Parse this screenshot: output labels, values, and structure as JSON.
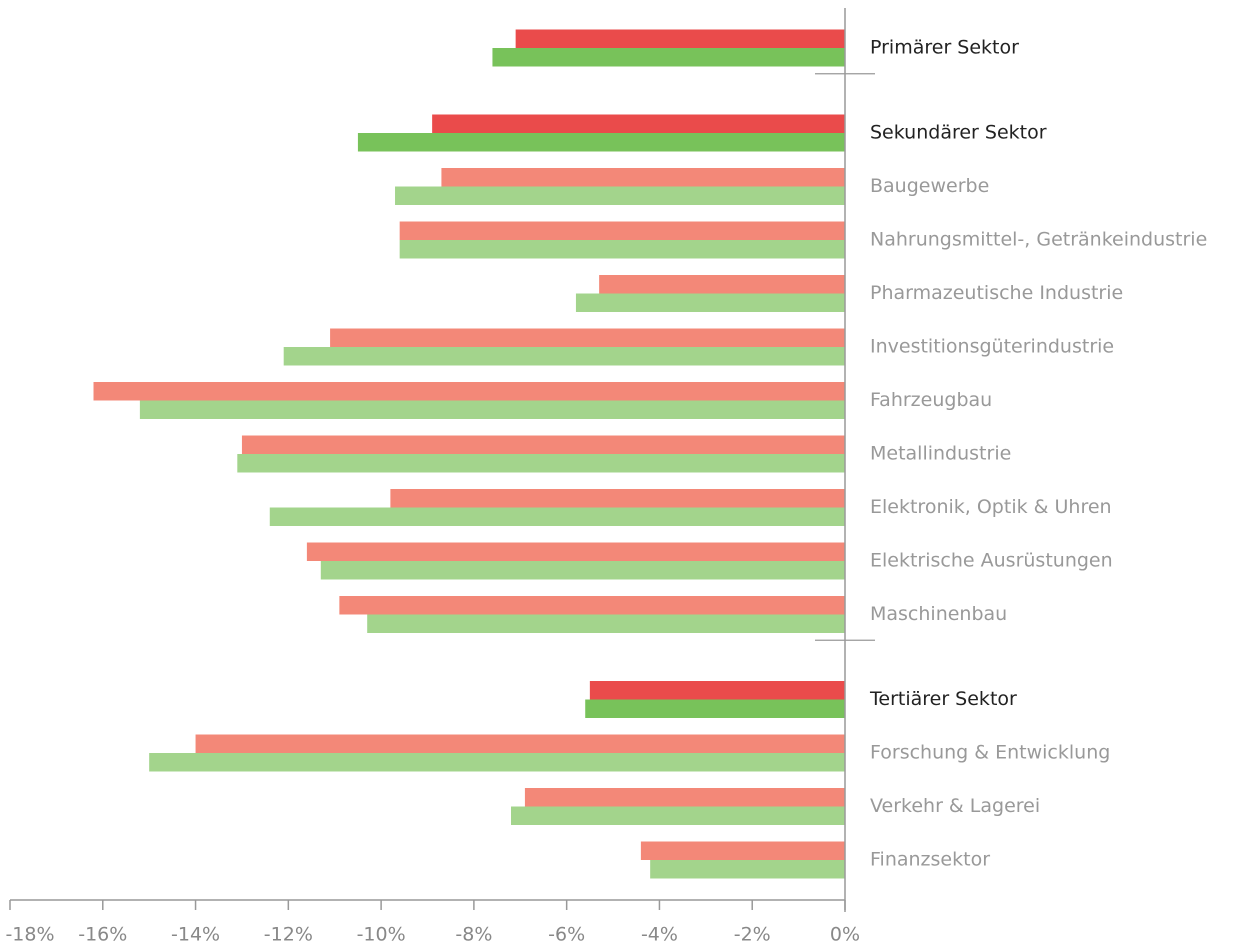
{
  "chart_data": {
    "type": "bar",
    "orientation": "horizontal",
    "categories": [
      "Primärer Sektor",
      "Sekundärer Sektor",
      "Baugewerbe",
      "Nahrungsmittel-, Getränkeindustrie",
      "Pharmazeutische Industrie",
      "Investitionsgüterindustrie",
      "Fahrzeugbau",
      "Metallindustrie",
      "Elektronik, Optik & Uhren",
      "Elektrische Ausrüstungen",
      "Maschinenbau",
      "Tertiärer Sektor",
      "Forschung & Entwicklung",
      "Verkehr & Lagerei",
      "Finanzsektor"
    ],
    "label_colors": [
      "#222222",
      "#222222",
      "#999999",
      "#999999",
      "#999999",
      "#999999",
      "#999999",
      "#999999",
      "#999999",
      "#999999",
      "#999999",
      "#222222",
      "#999999",
      "#999999",
      "#999999"
    ],
    "series": [
      {
        "colors": [
          "#ea4b4b",
          "#ea4b4b",
          "#f38878",
          "#f38878",
          "#f38878",
          "#f38878",
          "#f38878",
          "#f38878",
          "#f38878",
          "#f38878",
          "#f38878",
          "#ea4b4b",
          "#f38878",
          "#f38878",
          "#f38878"
        ],
        "values": [
          -7.1,
          -8.9,
          -8.7,
          -9.6,
          -5.3,
          -11.1,
          -16.2,
          -13.0,
          -9.8,
          -11.6,
          -10.9,
          -5.5,
          -14.0,
          -6.9,
          -4.4
        ]
      },
      {
        "colors": [
          "#78c25a",
          "#78c25a",
          "#a3d48c",
          "#a3d48c",
          "#a3d48c",
          "#a3d48c",
          "#a3d48c",
          "#a3d48c",
          "#a3d48c",
          "#a3d48c",
          "#a3d48c",
          "#78c25a",
          "#a3d48c",
          "#a3d48c",
          "#a3d48c"
        ],
        "values": [
          -7.6,
          -10.5,
          -9.7,
          -9.6,
          -5.8,
          -12.1,
          -15.2,
          -13.1,
          -12.4,
          -11.3,
          -10.3,
          -5.6,
          -15.0,
          -7.2,
          -4.2
        ]
      }
    ],
    "xlim": [
      -18,
      0
    ],
    "xticks": [
      {
        "value": -18,
        "label": "-18%"
      },
      {
        "value": -16,
        "label": "-16%"
      },
      {
        "value": -14,
        "label": "-14%"
      },
      {
        "value": -12,
        "label": "-12%"
      },
      {
        "value": -10,
        "label": "-10%"
      },
      {
        "value": -8,
        "label": "-8%"
      },
      {
        "value": -6,
        "label": "-6%"
      },
      {
        "value": -4,
        "label": "-4%"
      },
      {
        "value": -2,
        "label": "-2%"
      },
      {
        "value": 0,
        "label": "0%"
      }
    ]
  }
}
